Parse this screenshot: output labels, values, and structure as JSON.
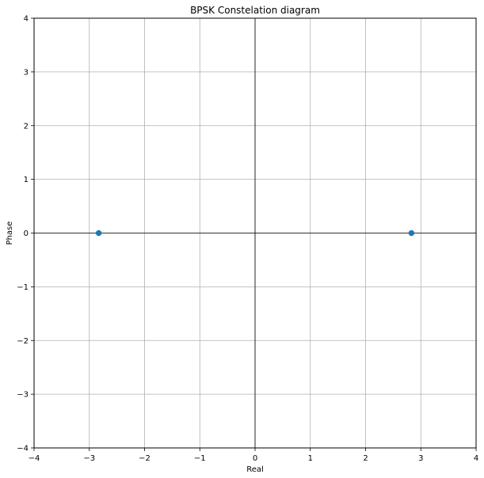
{
  "chart_data": {
    "type": "scatter",
    "title": "BPSK Constelation diagram",
    "xlabel": "Real",
    "ylabel": "Phase",
    "xlim": [
      -4,
      4
    ],
    "ylim": [
      -4,
      4
    ],
    "xticks": [
      -4,
      -3,
      -2,
      -1,
      0,
      1,
      2,
      3,
      4
    ],
    "yticks": [
      -4,
      -3,
      -2,
      -1,
      0,
      1,
      2,
      3,
      4
    ],
    "xtick_labels": [
      "−4",
      "−3",
      "−2",
      "−1",
      "0",
      "1",
      "2",
      "3",
      "4"
    ],
    "ytick_labels": [
      "−4",
      "−3",
      "−2",
      "−1",
      "0",
      "1",
      "2",
      "3",
      "4"
    ],
    "grid": true,
    "zero_axes_lines": true,
    "series": [
      {
        "marker": "circle",
        "color": "#1f77b4",
        "points": [
          {
            "x": -2.83,
            "y": 0
          },
          {
            "x": 2.83,
            "y": 0
          }
        ]
      }
    ]
  }
}
